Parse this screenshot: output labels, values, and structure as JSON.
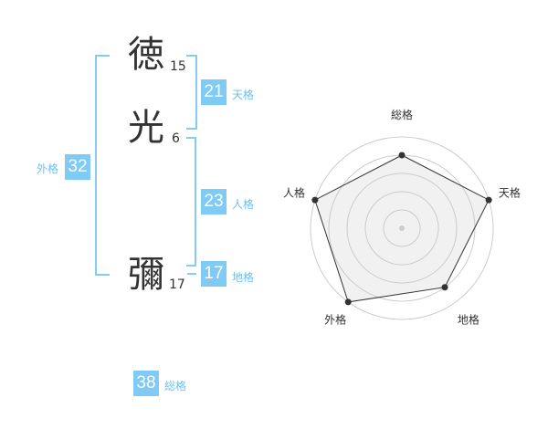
{
  "characters": [
    {
      "char": "徳",
      "strokes": "15"
    },
    {
      "char": "光",
      "strokes": "6"
    },
    {
      "char": "彌",
      "strokes": "17"
    }
  ],
  "fortunes": {
    "tenkaku": {
      "label": "天格",
      "value": "21"
    },
    "jinkaku": {
      "label": "人格",
      "value": "23"
    },
    "chikaku": {
      "label": "地格",
      "value": "17"
    },
    "gaikaku": {
      "label": "外格",
      "value": "32"
    },
    "soukaku": {
      "label": "総格",
      "value": "38"
    }
  },
  "accent_color": "#7fcbf5",
  "chart_data": {
    "type": "radar",
    "categories": [
      "総格",
      "天格",
      "地格",
      "外格",
      "人格"
    ],
    "values": [
      4,
      5,
      4,
      5,
      5
    ],
    "rlim": [
      0,
      5
    ],
    "grid": true
  }
}
